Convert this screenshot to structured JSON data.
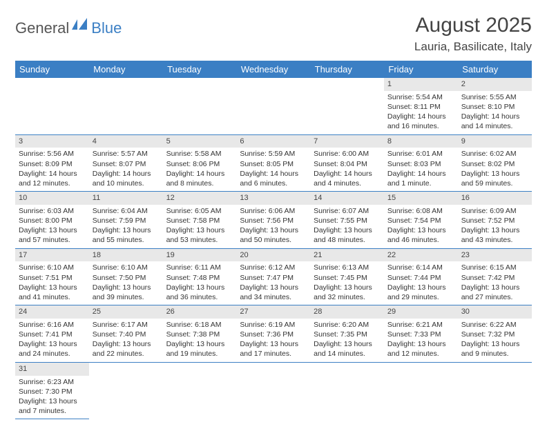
{
  "logo": {
    "part1": "General",
    "part2": "Blue"
  },
  "title": "August 2025",
  "location": "Lauria, Basilicate, Italy",
  "colors": {
    "header_bg": "#3b7fc4",
    "header_fg": "#ffffff",
    "daynum_bg": "#e8e8e8",
    "border": "#3b7fc4",
    "text": "#333333"
  },
  "day_headers": [
    "Sunday",
    "Monday",
    "Tuesday",
    "Wednesday",
    "Thursday",
    "Friday",
    "Saturday"
  ],
  "weeks": [
    [
      null,
      null,
      null,
      null,
      null,
      {
        "n": "1",
        "sr": "Sunrise: 5:54 AM",
        "ss": "Sunset: 8:11 PM",
        "dl": "Daylight: 14 hours and 16 minutes."
      },
      {
        "n": "2",
        "sr": "Sunrise: 5:55 AM",
        "ss": "Sunset: 8:10 PM",
        "dl": "Daylight: 14 hours and 14 minutes."
      }
    ],
    [
      {
        "n": "3",
        "sr": "Sunrise: 5:56 AM",
        "ss": "Sunset: 8:09 PM",
        "dl": "Daylight: 14 hours and 12 minutes."
      },
      {
        "n": "4",
        "sr": "Sunrise: 5:57 AM",
        "ss": "Sunset: 8:07 PM",
        "dl": "Daylight: 14 hours and 10 minutes."
      },
      {
        "n": "5",
        "sr": "Sunrise: 5:58 AM",
        "ss": "Sunset: 8:06 PM",
        "dl": "Daylight: 14 hours and 8 minutes."
      },
      {
        "n": "6",
        "sr": "Sunrise: 5:59 AM",
        "ss": "Sunset: 8:05 PM",
        "dl": "Daylight: 14 hours and 6 minutes."
      },
      {
        "n": "7",
        "sr": "Sunrise: 6:00 AM",
        "ss": "Sunset: 8:04 PM",
        "dl": "Daylight: 14 hours and 4 minutes."
      },
      {
        "n": "8",
        "sr": "Sunrise: 6:01 AM",
        "ss": "Sunset: 8:03 PM",
        "dl": "Daylight: 14 hours and 1 minute."
      },
      {
        "n": "9",
        "sr": "Sunrise: 6:02 AM",
        "ss": "Sunset: 8:02 PM",
        "dl": "Daylight: 13 hours and 59 minutes."
      }
    ],
    [
      {
        "n": "10",
        "sr": "Sunrise: 6:03 AM",
        "ss": "Sunset: 8:00 PM",
        "dl": "Daylight: 13 hours and 57 minutes."
      },
      {
        "n": "11",
        "sr": "Sunrise: 6:04 AM",
        "ss": "Sunset: 7:59 PM",
        "dl": "Daylight: 13 hours and 55 minutes."
      },
      {
        "n": "12",
        "sr": "Sunrise: 6:05 AM",
        "ss": "Sunset: 7:58 PM",
        "dl": "Daylight: 13 hours and 53 minutes."
      },
      {
        "n": "13",
        "sr": "Sunrise: 6:06 AM",
        "ss": "Sunset: 7:56 PM",
        "dl": "Daylight: 13 hours and 50 minutes."
      },
      {
        "n": "14",
        "sr": "Sunrise: 6:07 AM",
        "ss": "Sunset: 7:55 PM",
        "dl": "Daylight: 13 hours and 48 minutes."
      },
      {
        "n": "15",
        "sr": "Sunrise: 6:08 AM",
        "ss": "Sunset: 7:54 PM",
        "dl": "Daylight: 13 hours and 46 minutes."
      },
      {
        "n": "16",
        "sr": "Sunrise: 6:09 AM",
        "ss": "Sunset: 7:52 PM",
        "dl": "Daylight: 13 hours and 43 minutes."
      }
    ],
    [
      {
        "n": "17",
        "sr": "Sunrise: 6:10 AM",
        "ss": "Sunset: 7:51 PM",
        "dl": "Daylight: 13 hours and 41 minutes."
      },
      {
        "n": "18",
        "sr": "Sunrise: 6:10 AM",
        "ss": "Sunset: 7:50 PM",
        "dl": "Daylight: 13 hours and 39 minutes."
      },
      {
        "n": "19",
        "sr": "Sunrise: 6:11 AM",
        "ss": "Sunset: 7:48 PM",
        "dl": "Daylight: 13 hours and 36 minutes."
      },
      {
        "n": "20",
        "sr": "Sunrise: 6:12 AM",
        "ss": "Sunset: 7:47 PM",
        "dl": "Daylight: 13 hours and 34 minutes."
      },
      {
        "n": "21",
        "sr": "Sunrise: 6:13 AM",
        "ss": "Sunset: 7:45 PM",
        "dl": "Daylight: 13 hours and 32 minutes."
      },
      {
        "n": "22",
        "sr": "Sunrise: 6:14 AM",
        "ss": "Sunset: 7:44 PM",
        "dl": "Daylight: 13 hours and 29 minutes."
      },
      {
        "n": "23",
        "sr": "Sunrise: 6:15 AM",
        "ss": "Sunset: 7:42 PM",
        "dl": "Daylight: 13 hours and 27 minutes."
      }
    ],
    [
      {
        "n": "24",
        "sr": "Sunrise: 6:16 AM",
        "ss": "Sunset: 7:41 PM",
        "dl": "Daylight: 13 hours and 24 minutes."
      },
      {
        "n": "25",
        "sr": "Sunrise: 6:17 AM",
        "ss": "Sunset: 7:40 PM",
        "dl": "Daylight: 13 hours and 22 minutes."
      },
      {
        "n": "26",
        "sr": "Sunrise: 6:18 AM",
        "ss": "Sunset: 7:38 PM",
        "dl": "Daylight: 13 hours and 19 minutes."
      },
      {
        "n": "27",
        "sr": "Sunrise: 6:19 AM",
        "ss": "Sunset: 7:36 PM",
        "dl": "Daylight: 13 hours and 17 minutes."
      },
      {
        "n": "28",
        "sr": "Sunrise: 6:20 AM",
        "ss": "Sunset: 7:35 PM",
        "dl": "Daylight: 13 hours and 14 minutes."
      },
      {
        "n": "29",
        "sr": "Sunrise: 6:21 AM",
        "ss": "Sunset: 7:33 PM",
        "dl": "Daylight: 13 hours and 12 minutes."
      },
      {
        "n": "30",
        "sr": "Sunrise: 6:22 AM",
        "ss": "Sunset: 7:32 PM",
        "dl": "Daylight: 13 hours and 9 minutes."
      }
    ],
    [
      {
        "n": "31",
        "sr": "Sunrise: 6:23 AM",
        "ss": "Sunset: 7:30 PM",
        "dl": "Daylight: 13 hours and 7 minutes."
      },
      null,
      null,
      null,
      null,
      null,
      null
    ]
  ]
}
